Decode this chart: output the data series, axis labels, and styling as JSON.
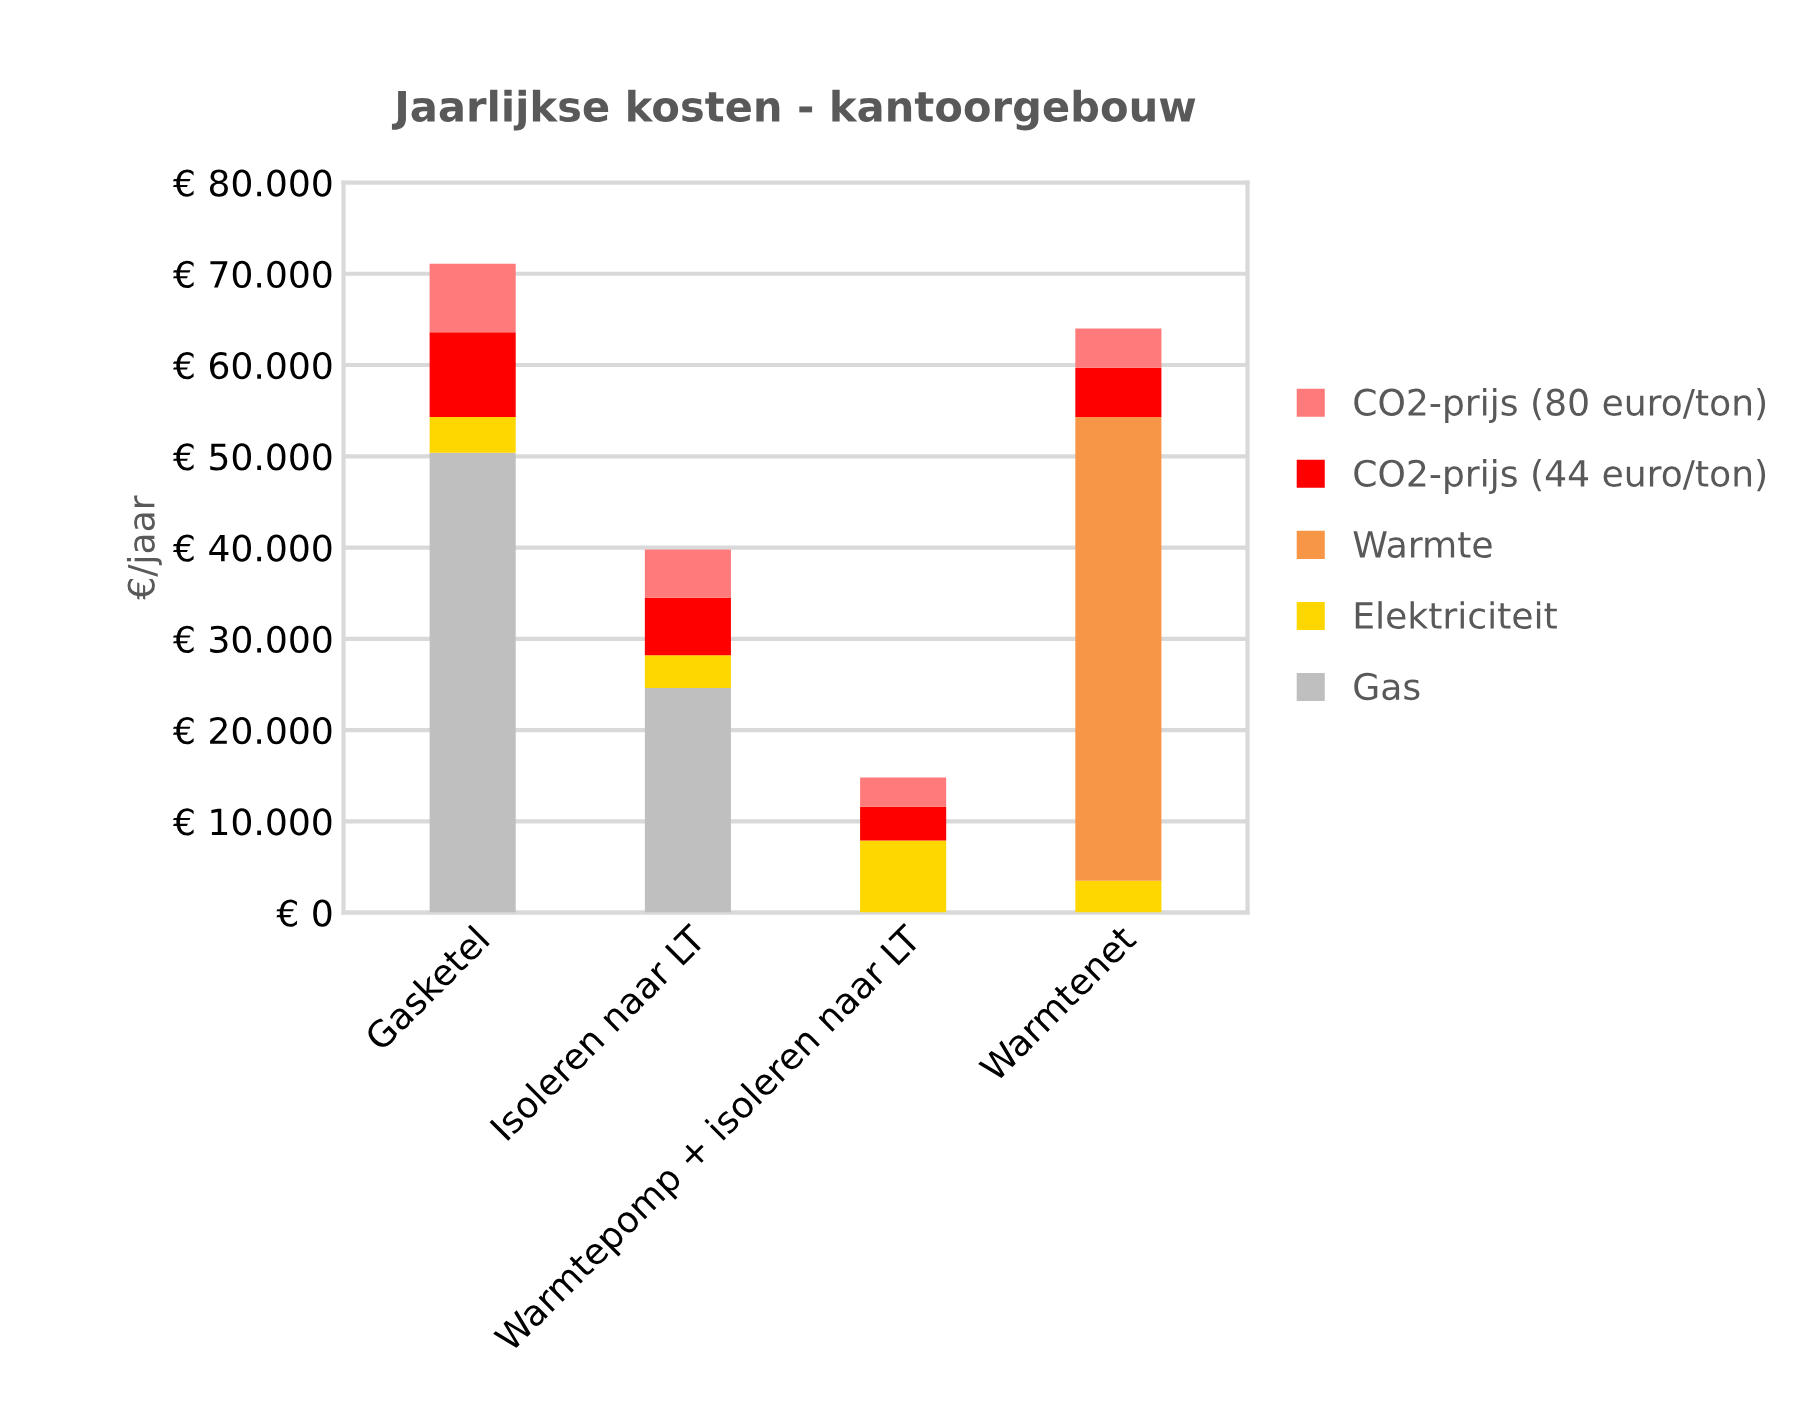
{
  "chart_data": {
    "type": "bar",
    "stacked": true,
    "title": "Jaarlijkse kosten - kantoorgebouw",
    "ylabel": "€/jaar",
    "categories": [
      "Gasketel",
      "Isoleren naar LT",
      "Warmtepomp + isoleren naar LT",
      "Warmtenet"
    ],
    "series": [
      {
        "name": "Gas",
        "color": "#bfbfbf",
        "values": [
          50400,
          24600,
          0,
          0
        ]
      },
      {
        "name": "Elektriciteit",
        "color": "#ffd700",
        "values": [
          3900,
          3600,
          7900,
          3500
        ]
      },
      {
        "name": "Warmte",
        "color": "#f79646",
        "values": [
          0,
          0,
          0,
          50800
        ]
      },
      {
        "name": "CO2-prijs (44 euro/ton)",
        "color": "#ff0000",
        "values": [
          9300,
          6300,
          3700,
          5400
        ]
      },
      {
        "name": "CO2-prijs (80 euro/ton)",
        "color": "#ff7a7a",
        "values": [
          7500,
          5300,
          3200,
          4300
        ]
      }
    ],
    "ylim": [
      0,
      80000
    ],
    "yticks": [
      {
        "value": 0,
        "label": "€ 0"
      },
      {
        "value": 10000,
        "label": "€ 10.000"
      },
      {
        "value": 20000,
        "label": "€ 20.000"
      },
      {
        "value": 30000,
        "label": "€ 30.000"
      },
      {
        "value": 40000,
        "label": "€ 40.000"
      },
      {
        "value": 50000,
        "label": "€ 50.000"
      },
      {
        "value": 60000,
        "label": "€ 60.000"
      },
      {
        "value": 70000,
        "label": "€ 70.000"
      },
      {
        "value": 80000,
        "label": "€ 80.000"
      }
    ],
    "grid": "y",
    "legend": "right"
  }
}
